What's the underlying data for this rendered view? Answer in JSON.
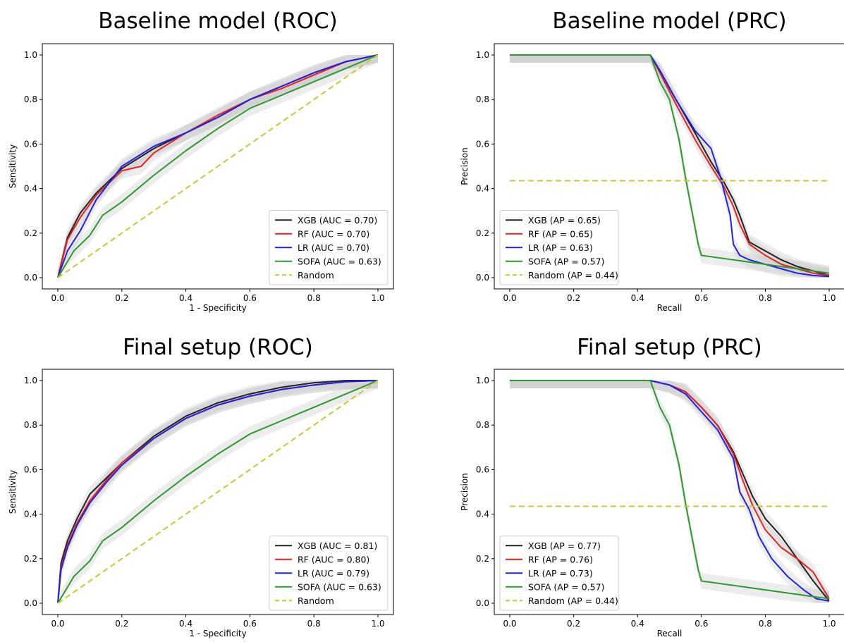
{
  "chart_data": [
    {
      "type": "line",
      "title": "Baseline model (ROC)",
      "xlabel": "1 - Specificity",
      "ylabel": "Sensitivity",
      "xlim": [
        0,
        1
      ],
      "ylim": [
        0,
        1
      ],
      "xticks": [
        "0.0",
        "0.2",
        "0.4",
        "0.6",
        "0.8",
        "1.0"
      ],
      "yticks": [
        "0.0",
        "0.2",
        "0.4",
        "0.6",
        "0.8",
        "1.0"
      ],
      "legend_position": "lower right",
      "series": [
        {
          "name": "XGB (AUC = 0.70)",
          "color": "#222222",
          "dashed": false,
          "x": [
            0,
            0.03,
            0.07,
            0.12,
            0.2,
            0.3,
            0.4,
            0.5,
            0.6,
            0.7,
            0.8,
            0.9,
            1.0
          ],
          "y": [
            0,
            0.18,
            0.29,
            0.38,
            0.49,
            0.58,
            0.65,
            0.72,
            0.8,
            0.86,
            0.92,
            0.97,
            1.0
          ]
        },
        {
          "name": "RF (AUC = 0.70)",
          "color": "#e8211f",
          "dashed": false,
          "x": [
            0,
            0.03,
            0.07,
            0.12,
            0.2,
            0.26,
            0.3,
            0.4,
            0.5,
            0.6,
            0.7,
            0.8,
            0.9,
            1.0
          ],
          "y": [
            0,
            0.17,
            0.27,
            0.37,
            0.48,
            0.5,
            0.56,
            0.65,
            0.73,
            0.8,
            0.85,
            0.91,
            0.97,
            1.0
          ]
        },
        {
          "name": "LR (AUC = 0.70)",
          "color": "#2020e8",
          "dashed": false,
          "x": [
            0,
            0.03,
            0.07,
            0.12,
            0.2,
            0.3,
            0.4,
            0.5,
            0.6,
            0.7,
            0.8,
            0.9,
            1.0
          ],
          "y": [
            0,
            0.12,
            0.21,
            0.35,
            0.5,
            0.59,
            0.65,
            0.72,
            0.8,
            0.86,
            0.92,
            0.97,
            1.0
          ]
        },
        {
          "name": "SOFA (AUC = 0.63)",
          "color": "#2a9a2a",
          "dashed": false,
          "x": [
            0,
            0.05,
            0.1,
            0.14,
            0.2,
            0.3,
            0.4,
            0.5,
            0.6,
            0.7,
            0.8,
            0.9,
            1.0
          ],
          "y": [
            0,
            0.12,
            0.19,
            0.28,
            0.34,
            0.46,
            0.57,
            0.67,
            0.76,
            0.82,
            0.88,
            0.94,
            1.0
          ]
        },
        {
          "name": "Random",
          "color": "#c8c832",
          "dashed": true,
          "x": [
            0,
            1
          ],
          "y": [
            0,
            1
          ]
        }
      ]
    },
    {
      "type": "line",
      "title": "Baseline model (PRC)",
      "xlabel": "Recall",
      "ylabel": "Precision",
      "xlim": [
        0,
        1
      ],
      "ylim": [
        0,
        1
      ],
      "xticks": [
        "0.0",
        "0.2",
        "0.4",
        "0.6",
        "0.8",
        "1.0"
      ],
      "yticks": [
        "0.0",
        "0.2",
        "0.4",
        "0.6",
        "0.8",
        "1.0"
      ],
      "legend_position": "lower left",
      "series": [
        {
          "name": "XGB (AP = 0.65)",
          "color": "#222222",
          "dashed": false,
          "x": [
            0,
            0.44,
            0.47,
            0.52,
            0.58,
            0.63,
            0.67,
            0.7,
            0.72,
            0.75,
            0.8,
            0.85,
            0.9,
            0.95,
            1.0
          ],
          "y": [
            1,
            1,
            0.93,
            0.8,
            0.65,
            0.52,
            0.43,
            0.35,
            0.28,
            0.16,
            0.12,
            0.08,
            0.05,
            0.03,
            0.01
          ]
        },
        {
          "name": "RF (AP = 0.65)",
          "color": "#e8211f",
          "dashed": false,
          "x": [
            0,
            0.44,
            0.47,
            0.52,
            0.58,
            0.63,
            0.67,
            0.7,
            0.72,
            0.75,
            0.8,
            0.85,
            0.9,
            0.95,
            1.0
          ],
          "y": [
            1,
            1,
            0.92,
            0.78,
            0.62,
            0.5,
            0.41,
            0.32,
            0.24,
            0.15,
            0.1,
            0.06,
            0.04,
            0.02,
            0.01
          ]
        },
        {
          "name": "LR (AP = 0.63)",
          "color": "#2020e8",
          "dashed": false,
          "x": [
            0,
            0.44,
            0.47,
            0.52,
            0.58,
            0.63,
            0.66,
            0.69,
            0.7,
            0.72,
            0.75,
            0.8,
            0.85,
            0.9,
            0.95,
            1.0
          ],
          "y": [
            1,
            1,
            0.93,
            0.8,
            0.66,
            0.58,
            0.45,
            0.28,
            0.15,
            0.1,
            0.08,
            0.06,
            0.04,
            0.02,
            0.01,
            0.005
          ]
        },
        {
          "name": "SOFA (AP = 0.57)",
          "color": "#2a9a2a",
          "dashed": false,
          "x": [
            0,
            0.44,
            0.47,
            0.5,
            0.53,
            0.55,
            0.57,
            0.59,
            0.6,
            0.65,
            0.75,
            0.85,
            0.95,
            1.0
          ],
          "y": [
            1,
            1,
            0.88,
            0.8,
            0.62,
            0.45,
            0.3,
            0.15,
            0.1,
            0.09,
            0.07,
            0.05,
            0.03,
            0.02
          ]
        },
        {
          "name": "Random (AP = 0.44)",
          "color": "#c8c832",
          "dashed": true,
          "x": [
            0,
            1
          ],
          "y": [
            0.435,
            0.435
          ]
        }
      ]
    },
    {
      "type": "line",
      "title": "Final setup (ROC)",
      "xlabel": "1 - Specificity",
      "ylabel": "Sensitivity",
      "xlim": [
        0,
        1
      ],
      "ylim": [
        0,
        1
      ],
      "xticks": [
        "0.0",
        "0.2",
        "0.4",
        "0.6",
        "0.8",
        "1.0"
      ],
      "yticks": [
        "0.0",
        "0.2",
        "0.4",
        "0.6",
        "0.8",
        "1.0"
      ],
      "legend_position": "lower right",
      "series": [
        {
          "name": "XGB (AUC = 0.81)",
          "color": "#222222",
          "dashed": false,
          "x": [
            0,
            0.01,
            0.03,
            0.06,
            0.1,
            0.15,
            0.2,
            0.3,
            0.4,
            0.5,
            0.6,
            0.7,
            0.8,
            0.9,
            1.0
          ],
          "y": [
            0,
            0.18,
            0.28,
            0.38,
            0.49,
            0.56,
            0.63,
            0.75,
            0.84,
            0.9,
            0.94,
            0.97,
            0.99,
            1.0,
            1.0
          ]
        },
        {
          "name": "RF (AUC = 0.80)",
          "color": "#e8211f",
          "dashed": false,
          "x": [
            0,
            0.01,
            0.03,
            0.06,
            0.1,
            0.15,
            0.2,
            0.3,
            0.4,
            0.5,
            0.6,
            0.7,
            0.8,
            0.9,
            1.0
          ],
          "y": [
            0,
            0.16,
            0.26,
            0.36,
            0.46,
            0.55,
            0.63,
            0.74,
            0.83,
            0.89,
            0.93,
            0.96,
            0.98,
            0.995,
            1.0
          ]
        },
        {
          "name": "LR (AUC = 0.79)",
          "color": "#2020e8",
          "dashed": false,
          "x": [
            0,
            0.01,
            0.03,
            0.06,
            0.1,
            0.15,
            0.2,
            0.3,
            0.4,
            0.5,
            0.6,
            0.7,
            0.8,
            0.9,
            1.0
          ],
          "y": [
            0,
            0.15,
            0.25,
            0.35,
            0.45,
            0.54,
            0.62,
            0.74,
            0.83,
            0.89,
            0.93,
            0.96,
            0.98,
            0.995,
            1.0
          ]
        },
        {
          "name": "SOFA (AUC = 0.63)",
          "color": "#2a9a2a",
          "dashed": false,
          "x": [
            0,
            0.05,
            0.1,
            0.14,
            0.2,
            0.3,
            0.4,
            0.5,
            0.6,
            0.7,
            0.8,
            0.9,
            1.0
          ],
          "y": [
            0,
            0.12,
            0.19,
            0.28,
            0.34,
            0.46,
            0.57,
            0.67,
            0.76,
            0.82,
            0.88,
            0.94,
            1.0
          ]
        },
        {
          "name": "Random",
          "color": "#c8c832",
          "dashed": true,
          "x": [
            0,
            1
          ],
          "y": [
            0,
            1
          ]
        }
      ]
    },
    {
      "type": "line",
      "title": "Final setup (PRC)",
      "xlabel": "Recall",
      "ylabel": "Precision",
      "xlim": [
        0,
        1
      ],
      "ylim": [
        0,
        1
      ],
      "xticks": [
        "0.0",
        "0.2",
        "0.4",
        "0.6",
        "0.8",
        "1.0"
      ],
      "yticks": [
        "0.0",
        "0.2",
        "0.4",
        "0.6",
        "0.8",
        "1.0"
      ],
      "legend_position": "lower left",
      "series": [
        {
          "name": "XGB (AP = 0.77)",
          "color": "#222222",
          "dashed": false,
          "x": [
            0,
            0.44,
            0.5,
            0.55,
            0.6,
            0.65,
            0.7,
            0.73,
            0.76,
            0.8,
            0.85,
            0.9,
            0.95,
            1.0
          ],
          "y": [
            1,
            1,
            0.98,
            0.95,
            0.88,
            0.8,
            0.68,
            0.58,
            0.48,
            0.38,
            0.3,
            0.2,
            0.1,
            0.01
          ]
        },
        {
          "name": "RF (AP = 0.76)",
          "color": "#e8211f",
          "dashed": false,
          "x": [
            0,
            0.44,
            0.5,
            0.55,
            0.6,
            0.65,
            0.7,
            0.73,
            0.76,
            0.8,
            0.85,
            0.9,
            0.95,
            1.0
          ],
          "y": [
            1,
            1,
            0.98,
            0.95,
            0.88,
            0.8,
            0.67,
            0.55,
            0.44,
            0.33,
            0.25,
            0.2,
            0.14,
            0.02
          ]
        },
        {
          "name": "LR (AP = 0.73)",
          "color": "#2020e8",
          "dashed": false,
          "x": [
            0,
            0.44,
            0.5,
            0.55,
            0.6,
            0.65,
            0.7,
            0.72,
            0.75,
            0.78,
            0.82,
            0.87,
            0.92,
            0.96,
            1.0
          ],
          "y": [
            1,
            1,
            0.98,
            0.94,
            0.86,
            0.78,
            0.65,
            0.5,
            0.42,
            0.3,
            0.2,
            0.12,
            0.06,
            0.02,
            0.01
          ]
        },
        {
          "name": "SOFA (AP = 0.57)",
          "color": "#2a9a2a",
          "dashed": false,
          "x": [
            0,
            0.44,
            0.47,
            0.5,
            0.53,
            0.55,
            0.57,
            0.59,
            0.6,
            0.65,
            0.75,
            0.85,
            0.95,
            1.0
          ],
          "y": [
            1,
            1,
            0.88,
            0.8,
            0.62,
            0.45,
            0.3,
            0.15,
            0.1,
            0.09,
            0.07,
            0.05,
            0.03,
            0.02
          ]
        },
        {
          "name": "Random (AP = 0.44)",
          "color": "#c8c832",
          "dashed": true,
          "x": [
            0,
            1
          ],
          "y": [
            0.435,
            0.435
          ]
        }
      ]
    }
  ]
}
